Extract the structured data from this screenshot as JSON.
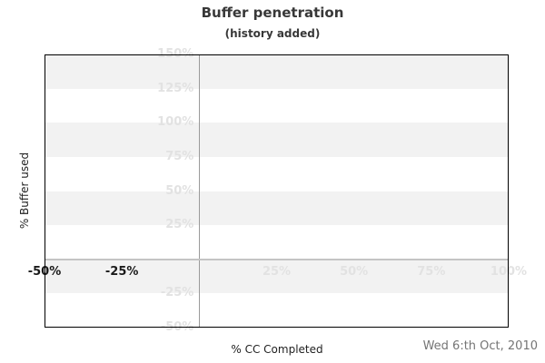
{
  "header": {
    "title": "Buffer penetration",
    "subtitle": "(history added)"
  },
  "footer": {
    "date": "Wed 6:th Oct, 2010"
  },
  "colors": {
    "background": "#ffffff",
    "band_gray": "#f2f2f2",
    "light_label": "#e2e2e2",
    "dark_label": "#1a1a1a",
    "title_color": "#383838",
    "date_color": "#757575",
    "zero_vline": "#9a9a9a",
    "zero_hline": "#c4c4c4",
    "plot_border": "#000000"
  },
  "chart_data": {
    "type": "line",
    "title": "Buffer penetration",
    "subtitle": "(history added)",
    "xlabel": "% CC Completed",
    "ylabel": "% Buffer used",
    "xlim": [
      -50,
      100
    ],
    "ylim": [
      -50,
      150
    ],
    "x_tick_labels": [
      {
        "value": -50,
        "label": "-50%",
        "emphasis": "dark"
      },
      {
        "value": -25,
        "label": "-25%",
        "emphasis": "dark"
      },
      {
        "value": 25,
        "label": "25%",
        "emphasis": "light"
      },
      {
        "value": 50,
        "label": "50%",
        "emphasis": "light"
      },
      {
        "value": 75,
        "label": "75%",
        "emphasis": "light"
      },
      {
        "value": 100,
        "label": "100%",
        "emphasis": "light"
      }
    ],
    "y_tick_labels": [
      {
        "value": 150,
        "label": "150%"
      },
      {
        "value": 125,
        "label": "125%"
      },
      {
        "value": 100,
        "label": "100%"
      },
      {
        "value": 75,
        "label": "75%"
      },
      {
        "value": 50,
        "label": "50%"
      },
      {
        "value": 25,
        "label": "25%"
      },
      {
        "value": -25,
        "label": "-25%"
      },
      {
        "value": -50,
        "label": "-50%"
      }
    ],
    "shaded_bands": [
      [
        125,
        150
      ],
      [
        75,
        100
      ],
      [
        25,
        50
      ],
      [
        -25,
        0
      ]
    ],
    "reference_lines": {
      "vertical_at_x": 0,
      "horizontal_at_y": 0
    },
    "series": [],
    "legend": "none",
    "grid": "alternating horizontal bands every 25%"
  }
}
